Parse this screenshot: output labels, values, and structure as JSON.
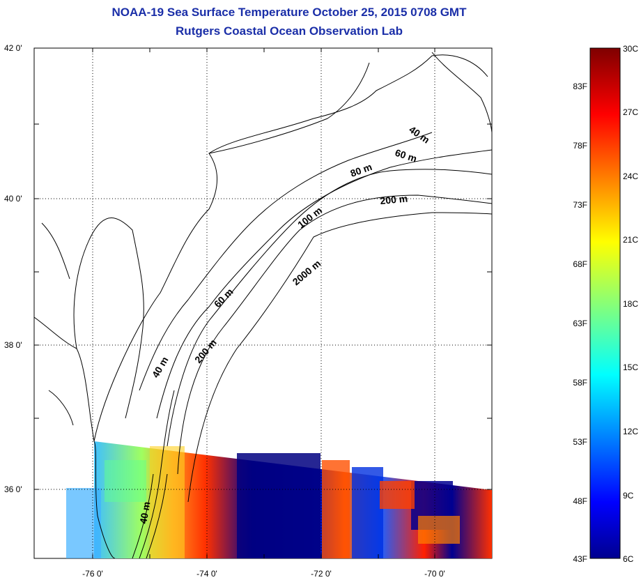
{
  "header": {
    "title_line1": "NOAA-19 Sea Surface Temperature October 25, 2015 0708 GMT",
    "title_line2": "Rutgers Coastal Ocean Observation Lab"
  },
  "map": {
    "lat_labels": [
      "42 0'",
      "40 0'",
      "38 0'",
      "36 0'"
    ],
    "lon_labels": [
      "-76 0'",
      "-74 0'",
      "-72 0'",
      "-70 0'"
    ],
    "depth_contour_labels": [
      "40 m",
      "60 m",
      "80 m",
      "200 m",
      "100 m",
      "2000 m",
      "60 m",
      "40 m",
      "200 m",
      "40 m"
    ],
    "colors": {
      "land_background": "#ffffff",
      "coastline": "#000000",
      "gridline": "#000000"
    }
  },
  "colorbar": {
    "celsius_labels": [
      "30C",
      "27C",
      "24C",
      "21C",
      "18C",
      "15C",
      "12C",
      "9C",
      "6C"
    ],
    "fahrenheit_labels": [
      "83F",
      "78F",
      "73F",
      "68F",
      "63F",
      "58F",
      "53F",
      "48F",
      "43F"
    ],
    "colors": [
      "#7f0000",
      "#ff0000",
      "#ff8000",
      "#ffff00",
      "#80ff80",
      "#00ffff",
      "#0080ff",
      "#0000ff",
      "#00008f"
    ]
  }
}
